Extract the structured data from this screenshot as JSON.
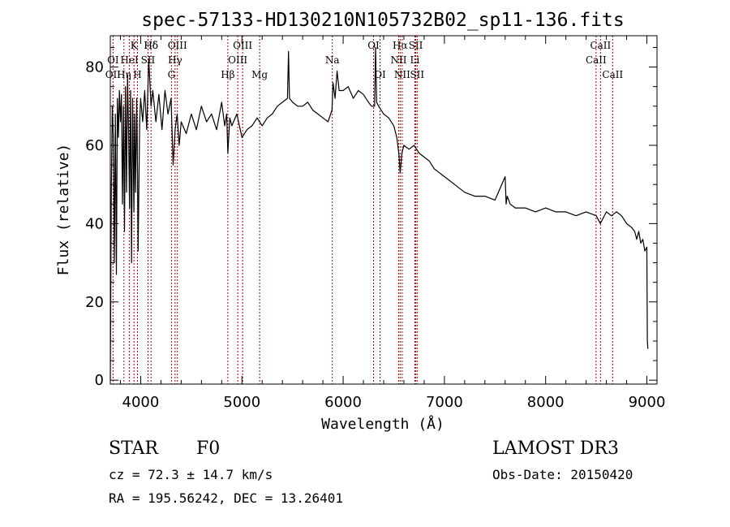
{
  "chart_data": {
    "type": "line",
    "title": "spec-57133-HD130210N105732B02_sp11-136.fits",
    "xlabel": "Wavelength (Å)",
    "ylabel": "Flux (relative)",
    "xlim": [
      3700,
      9100
    ],
    "ylim": [
      -1,
      88
    ],
    "xticks": [
      4000,
      5000,
      6000,
      7000,
      8000,
      9000
    ],
    "yticks": [
      0,
      20,
      40,
      60,
      80
    ],
    "grid": false,
    "series": [
      {
        "name": "flux",
        "x": [
          3700,
          3710,
          3720,
          3730,
          3740,
          3750,
          3760,
          3770,
          3780,
          3790,
          3800,
          3810,
          3820,
          3830,
          3840,
          3850,
          3860,
          3870,
          3880,
          3890,
          3900,
          3910,
          3920,
          3933,
          3940,
          3950,
          3960,
          3968,
          3975,
          3990,
          4000,
          4020,
          4040,
          4060,
          4080,
          4102,
          4120,
          4150,
          4180,
          4210,
          4240,
          4270,
          4300,
          4320,
          4340,
          4360,
          4380,
          4400,
          4450,
          4500,
          4550,
          4600,
          4650,
          4700,
          4750,
          4800,
          4830,
          4850,
          4861,
          4880,
          4900,
          4950,
          5000,
          5050,
          5100,
          5150,
          5200,
          5250,
          5300,
          5350,
          5400,
          5450,
          5460,
          5470,
          5500,
          5550,
          5600,
          5650,
          5700,
          5750,
          5800,
          5850,
          5890,
          5900,
          5920,
          5940,
          5960,
          6000,
          6050,
          6100,
          6150,
          6200,
          6250,
          6280,
          6300,
          6310,
          6320,
          6330,
          6350,
          6400,
          6450,
          6500,
          6530,
          6550,
          6563,
          6580,
          6600,
          6650,
          6700,
          6750,
          6800,
          6850,
          6900,
          6950,
          7000,
          7100,
          7200,
          7300,
          7400,
          7500,
          7600,
          7610,
          7620,
          7650,
          7700,
          7800,
          7900,
          8000,
          8100,
          8200,
          8300,
          8400,
          8500,
          8540,
          8560,
          8600,
          8650,
          8700,
          8750,
          8800,
          8850,
          8880,
          8900,
          8920,
          8940,
          8960,
          8980,
          9000,
          9005,
          9010
        ],
        "y": [
          0,
          48,
          70,
          62,
          30,
          68,
          27,
          72,
          62,
          74,
          66,
          73,
          45,
          70,
          38,
          75,
          48,
          78,
          64,
          44,
          74,
          30,
          72,
          43,
          68,
          48,
          72,
          55,
          33,
          66,
          72,
          66,
          74,
          64,
          82,
          70,
          74,
          66,
          73,
          64,
          74,
          68,
          72,
          55,
          64,
          68,
          60,
          66,
          63,
          68,
          64,
          70,
          66,
          68,
          64,
          71,
          65,
          68,
          58,
          67,
          65,
          68,
          62,
          64,
          65,
          67,
          65,
          67,
          68,
          70,
          71,
          72,
          84,
          72,
          71,
          70,
          70,
          71,
          69,
          68,
          67,
          66,
          69,
          76,
          72,
          79,
          74,
          74,
          75,
          72,
          74,
          73,
          71,
          70,
          70,
          70,
          85,
          71,
          70,
          68,
          67,
          65,
          62,
          58,
          53,
          58,
          60,
          59,
          60,
          58,
          57,
          56,
          54,
          53,
          52,
          50,
          48,
          47,
          47,
          46,
          52,
          45,
          47,
          45,
          44,
          44,
          43,
          44,
          43,
          43,
          42,
          43,
          42,
          40,
          41,
          43,
          42,
          43,
          42,
          40,
          39,
          38,
          36,
          38,
          35,
          36,
          33,
          34,
          10,
          8
        ]
      }
    ],
    "line_markers": [
      {
        "label": "Hδ",
        "x": 4102,
        "row": 1
      },
      {
        "label": "K",
        "x": 3934,
        "row": 1
      },
      {
        "label": "Hδ",
        "x": 4102,
        "row": 1
      },
      {
        "label": "OIII",
        "x": 4363,
        "row": 1
      },
      {
        "label": "OIII",
        "x": 5007,
        "row": 1
      },
      {
        "label": "OI",
        "x": 6300,
        "row": 1
      },
      {
        "label": "Hα",
        "x": 6563,
        "row": 1
      },
      {
        "label": "SII",
        "x": 6717,
        "row": 1
      },
      {
        "label": "CaII",
        "x": 8542,
        "row": 1
      },
      {
        "label": "OI",
        "x": 3727,
        "row": 2
      },
      {
        "label": "HeI",
        "x": 3889,
        "row": 2
      },
      {
        "label": "SII",
        "x": 4072,
        "row": 2
      },
      {
        "label": "Hγ",
        "x": 4340,
        "row": 2
      },
      {
        "label": "OIII",
        "x": 4959,
        "row": 2
      },
      {
        "label": "Na",
        "x": 5893,
        "row": 2
      },
      {
        "label": "NII",
        "x": 6548,
        "row": 2
      },
      {
        "label": "Li",
        "x": 6708,
        "row": 2
      },
      {
        "label": "CaII",
        "x": 8498,
        "row": 2
      },
      {
        "label": "OII",
        "x": 3727,
        "row": 3
      },
      {
        "label": "Hη",
        "x": 3835,
        "row": 3
      },
      {
        "label": "H",
        "x": 3968,
        "row": 3
      },
      {
        "label": "G",
        "x": 4304,
        "row": 3
      },
      {
        "label": "Hβ",
        "x": 4861,
        "row": 3
      },
      {
        "label": "Mg",
        "x": 5175,
        "row": 3
      },
      {
        "label": "OI",
        "x": 6364,
        "row": 3
      },
      {
        "label": "NII",
        "x": 6583,
        "row": 3
      },
      {
        "label": "SII",
        "x": 6731,
        "row": 3
      },
      {
        "label": "CaII",
        "x": 8662,
        "row": 3
      }
    ]
  },
  "info": {
    "object_class": "STAR",
    "subclass": "F0",
    "survey": "LAMOST DR3",
    "redshift": "cz = 72.3 ± 14.7 km/s",
    "obs_date": "Obs-Date: 20150420",
    "coords": "RA = 195.56242, DEC =  13.26401"
  },
  "colors": {
    "line_marker": "#b00000",
    "spectrum": "#000000"
  }
}
